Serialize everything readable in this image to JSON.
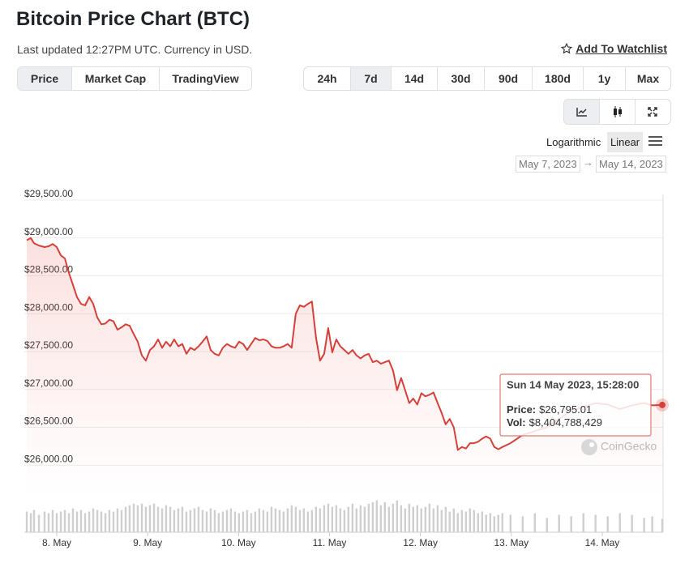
{
  "header": {
    "title": "Bitcoin Price Chart (BTC)",
    "subtitle": "Last updated 12:27PM UTC. Currency in USD.",
    "watchlist": "Add To Watchlist"
  },
  "tabs": [
    "Price",
    "Market Cap",
    "TradingView"
  ],
  "ranges": [
    "24h",
    "7d",
    "14d",
    "30d",
    "90d",
    "180d",
    "1y",
    "Max"
  ],
  "scale": {
    "log": "Logarithmic",
    "linear": "Linear"
  },
  "date_range": {
    "from": "May 7, 2023",
    "to": "May 14, 2023"
  },
  "watermark": "CoinGecko",
  "chart_data": {
    "type": "line",
    "color": "#d6403a",
    "volume_color": "#cfcfcf",
    "grid": true,
    "x": [
      7.67,
      7.715,
      7.75,
      7.804,
      7.866,
      7.911,
      7.955,
      8.0,
      8.045,
      8.089,
      8.134,
      8.178,
      8.223,
      8.267,
      8.312,
      8.357,
      8.401,
      8.446,
      8.49,
      8.535,
      8.579,
      8.624,
      8.668,
      8.713,
      8.758,
      8.802,
      8.847,
      8.891,
      8.936,
      8.98,
      9.025,
      9.07,
      9.114,
      9.159,
      9.203,
      9.248,
      9.292,
      9.337,
      9.381,
      9.426,
      9.47,
      9.515,
      9.56,
      9.604,
      9.649,
      9.693,
      9.738,
      9.782,
      9.827,
      9.872,
      9.916,
      9.961,
      10.005,
      10.05,
      10.094,
      10.139,
      10.183,
      10.228,
      10.273,
      10.317,
      10.362,
      10.406,
      10.451,
      10.495,
      10.54,
      10.584,
      10.629,
      10.674,
      10.718,
      10.763,
      10.807,
      10.852,
      10.896,
      10.941,
      10.986,
      11.03,
      11.075,
      11.119,
      11.164,
      11.208,
      11.253,
      11.297,
      11.342,
      11.387,
      11.431,
      11.476,
      11.52,
      11.565,
      11.609,
      11.654,
      11.699,
      11.743,
      11.788,
      11.832,
      11.877,
      11.921,
      11.966,
      12.01,
      12.055,
      12.1,
      12.144,
      12.189,
      12.233,
      12.278,
      12.322,
      12.367,
      12.411,
      12.456,
      12.501,
      12.545,
      12.59,
      12.634,
      12.679,
      12.723,
      12.768,
      12.813,
      12.857,
      12.902,
      12.991,
      13.125,
      13.258,
      13.392,
      13.525,
      13.659,
      13.793,
      13.926,
      14.06,
      14.194,
      14.327,
      14.461,
      14.55,
      14.66
    ],
    "values": [
      28970,
      29000,
      28930,
      28900,
      28880,
      28890,
      28920,
      28880,
      28770,
      28730,
      28540,
      28380,
      28220,
      28130,
      28110,
      28220,
      28130,
      27950,
      27860,
      27870,
      27920,
      27900,
      27790,
      27820,
      27860,
      27840,
      27730,
      27630,
      27450,
      27380,
      27520,
      27570,
      27660,
      27550,
      27630,
      27570,
      27660,
      27570,
      27600,
      27470,
      27550,
      27520,
      27570,
      27630,
      27700,
      27520,
      27470,
      27450,
      27550,
      27600,
      27570,
      27550,
      27630,
      27600,
      27520,
      27600,
      27680,
      27650,
      27660,
      27640,
      27570,
      27550,
      27550,
      27570,
      27600,
      27550,
      28000,
      28110,
      28090,
      28130,
      28160,
      27680,
      27380,
      27470,
      27810,
      27490,
      27660,
      27570,
      27520,
      27470,
      27520,
      27450,
      27410,
      27450,
      27470,
      27360,
      27380,
      27340,
      27360,
      27380,
      27250,
      26990,
      27150,
      26990,
      26820,
      26880,
      26800,
      26950,
      26910,
      26930,
      26960,
      26820,
      26690,
      26540,
      26610,
      26500,
      26200,
      26240,
      26220,
      26290,
      26290,
      26310,
      26350,
      26380,
      26350,
      26240,
      26210,
      26240,
      26290,
      26400,
      26450,
      26500,
      26610,
      26720,
      26770,
      26820,
      26800,
      26740,
      26790,
      26820,
      26790,
      26795.01
    ],
    "volume": [
      13000000000.0,
      12000000000.0,
      14000000000.0,
      11000000000.0,
      13000000000.0,
      12000000000.0,
      14000000000.0,
      12000000000.0,
      13000000000.0,
      14000000000.0,
      12000000000.0,
      15000000000.0,
      13000000000.0,
      14000000000.0,
      12000000000.0,
      13000000000.0,
      15000000000.0,
      14000000000.0,
      13000000000.0,
      12000000000.0,
      14000000000.0,
      13000000000.0,
      15000000000.0,
      14000000000.0,
      16000000000.0,
      17000000000.0,
      18000000000.0,
      17000000000.0,
      18000000000.0,
      16000000000.0,
      17000000000.0,
      18000000000.0,
      16000000000.0,
      15000000000.0,
      17000000000.0,
      16000000000.0,
      14000000000.0,
      15000000000.0,
      16000000000.0,
      13000000000.0,
      14000000000.0,
      15000000000.0,
      16000000000.0,
      14000000000.0,
      13000000000.0,
      15000000000.0,
      14000000000.0,
      12000000000.0,
      13000000000.0,
      14000000000.0,
      15000000000.0,
      13000000000.0,
      12000000000.0,
      13000000000.0,
      14000000000.0,
      12000000000.0,
      13000000000.0,
      15000000000.0,
      14000000000.0,
      13000000000.0,
      16000000000.0,
      15000000000.0,
      14000000000.0,
      13000000000.0,
      15000000000.0,
      17000000000.0,
      16000000000.0,
      14000000000.0,
      15000000000.0,
      13000000000.0,
      14000000000.0,
      16000000000.0,
      15000000000.0,
      17000000000.0,
      18000000000.0,
      16000000000.0,
      17000000000.0,
      15000000000.0,
      14000000000.0,
      16000000000.0,
      18000000000.0,
      15000000000.0,
      17000000000.0,
      16000000000.0,
      18000000000.0,
      19000000000.0,
      20000000000.0,
      17000000000.0,
      19000000000.0,
      16000000000.0,
      18000000000.0,
      20000000000.0,
      17000000000.0,
      15000000000.0,
      18000000000.0,
      16000000000.0,
      17000000000.0,
      15000000000.0,
      16000000000.0,
      18000000000.0,
      15000000000.0,
      17000000000.0,
      14000000000.0,
      16000000000.0,
      13000000000.0,
      15000000000.0,
      12000000000.0,
      14000000000.0,
      13000000000.0,
      15000000000.0,
      14000000000.0,
      12000000000.0,
      13000000000.0,
      11000000000.0,
      12000000000.0,
      10000000000.0,
      11000000000.0,
      12000000000.0,
      11000000000.0,
      10000000000.0,
      12000000000.0,
      9000000000.0,
      11000000000.0,
      10000000000.0,
      12000000000.0,
      11000000000.0,
      10000000000.0,
      12000000000.0,
      11000000000.0,
      9000000000.0,
      10000000000.0,
      8404788429
    ],
    "volume_lim": [
      0,
      24000000000.0
    ],
    "xlim": [
      7.67,
      14.66
    ],
    "xticks": [
      {
        "value": 8,
        "label": "8. May"
      },
      {
        "value": 9,
        "label": "9. May"
      },
      {
        "value": 10,
        "label": "10. May"
      },
      {
        "value": 11,
        "label": "11. May"
      },
      {
        "value": 12,
        "label": "12. May"
      },
      {
        "value": 13,
        "label": "13. May"
      },
      {
        "value": 14,
        "label": "14. May"
      }
    ],
    "ylim": [
      25500,
      29500
    ],
    "yticks": [
      {
        "value": 26000,
        "label": "$26,000.00"
      },
      {
        "value": 26500,
        "label": "$26,500.00"
      },
      {
        "value": 27000,
        "label": "$27,000.00"
      },
      {
        "value": 27500,
        "label": "$27,500.00"
      },
      {
        "value": 28000,
        "label": "$28,000.00"
      },
      {
        "value": 28500,
        "label": "$28,500.00"
      },
      {
        "value": 29000,
        "label": "$29,000.00"
      },
      {
        "value": 29500,
        "label": "$29,500.00"
      }
    ],
    "tooltip": {
      "title": "Sun 14 May 2023, 15:28:00",
      "price_label": "Price:",
      "price": "$26,795.01",
      "volume_label": "Vol:",
      "volume": "$8,404,788,429"
    }
  }
}
